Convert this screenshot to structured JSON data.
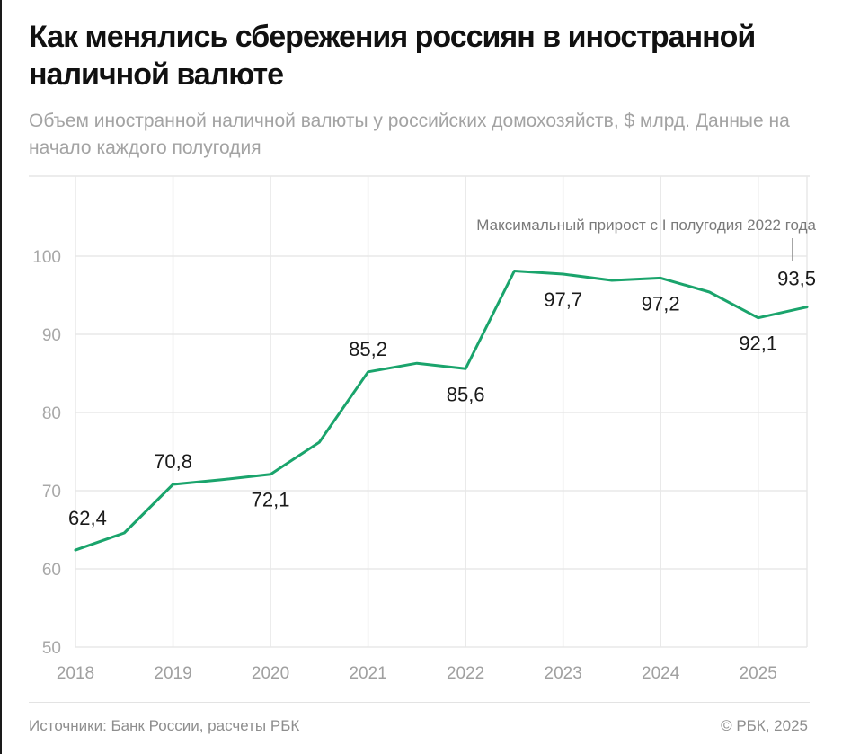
{
  "chart_data": {
    "type": "line",
    "title": "Как менялись сбережения россиян в иностранной наличной валюте",
    "subtitle": "Объем иностранной наличной валюты у российских домохозяйств, $ млрд. Данные на начало каждого полугодия",
    "xlabel": "",
    "ylabel": "",
    "ylim": [
      50,
      110
    ],
    "yticks": [
      50,
      60,
      70,
      80,
      90,
      100
    ],
    "ytick_labels": [
      "50",
      "60",
      "70",
      "80",
      "90",
      "100"
    ],
    "xticks": [
      2018,
      2019,
      2020,
      2021,
      2022,
      2023,
      2024,
      2025
    ],
    "xtick_labels": [
      "2018",
      "2019",
      "2020",
      "2021",
      "2022",
      "2023",
      "2024",
      "2025"
    ],
    "xlim": [
      2018,
      2025.5
    ],
    "grid": true,
    "color": "#1aa46c",
    "series": [
      {
        "name": "Объем иностранной наличной валюты",
        "x": [
          2018,
          2018.5,
          2019,
          2019.5,
          2020,
          2020.5,
          2021,
          2021.5,
          2022,
          2022.5,
          2023,
          2023.5,
          2024,
          2024.5,
          2025,
          2025.5
        ],
        "values": [
          62.4,
          64.6,
          70.8,
          71.4,
          72.1,
          76.2,
          85.2,
          86.3,
          85.6,
          98.1,
          97.7,
          96.9,
          97.2,
          95.4,
          92.1,
          93.5
        ]
      }
    ],
    "data_labels": [
      {
        "x": 2018,
        "value": 62.4,
        "text": "62,4",
        "pos": "above"
      },
      {
        "x": 2019,
        "value": 70.8,
        "text": "70,8",
        "pos": "above"
      },
      {
        "x": 2020,
        "value": 72.1,
        "text": "72,1",
        "pos": "below"
      },
      {
        "x": 2021,
        "value": 85.2,
        "text": "85,2",
        "pos": "above"
      },
      {
        "x": 2022,
        "value": 85.6,
        "text": "85,6",
        "pos": "below"
      },
      {
        "x": 2023,
        "value": 97.7,
        "text": "97,7",
        "pos": "below"
      },
      {
        "x": 2024,
        "value": 97.2,
        "text": "97,2",
        "pos": "below"
      },
      {
        "x": 2025,
        "value": 92.1,
        "text": "92,1",
        "pos": "below"
      },
      {
        "x": 2025.5,
        "value": 93.5,
        "text": "93,5",
        "pos": "above"
      }
    ],
    "annotation": {
      "x": 2025.5,
      "text": "Максимальный прирост с I полугодия 2022 года"
    }
  },
  "header": {
    "title": "Как менялись сбережения россиян в иностранной наличной валюте",
    "subtitle": "Объем иностранной наличной валюты у российских домохозяйств, $ млрд. Данные на начало каждого полугодия"
  },
  "footer": {
    "source": "Источники: Банк России, расчеты РБК",
    "copyright": "© РБК, 2025"
  }
}
